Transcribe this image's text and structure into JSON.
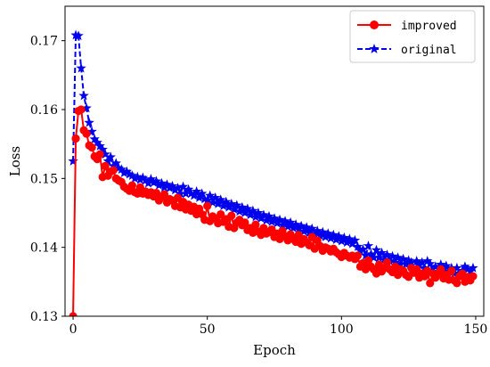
{
  "chart_data": {
    "type": "line",
    "title": "",
    "xlabel": "Epoch",
    "ylabel": "Loss",
    "xlim": [
      -3,
      153
    ],
    "ylim": [
      0.13,
      0.175
    ],
    "xticks": [
      0,
      50,
      100,
      150
    ],
    "yticks": [
      0.13,
      0.14,
      0.15,
      0.16,
      0.17
    ],
    "ytick_labels": [
      "0.13",
      "0.14",
      "0.15",
      "0.16",
      "0.17"
    ],
    "grid": false,
    "legend": "top-right",
    "x": [
      0,
      1,
      2,
      3,
      4,
      5,
      6,
      7,
      8,
      9,
      10,
      11,
      12,
      13,
      14,
      15,
      16,
      17,
      18,
      19,
      20,
      21,
      22,
      23,
      24,
      25,
      26,
      27,
      28,
      29,
      30,
      31,
      32,
      33,
      34,
      35,
      36,
      37,
      38,
      39,
      40,
      41,
      42,
      43,
      44,
      45,
      46,
      47,
      48,
      49,
      50,
      51,
      52,
      53,
      54,
      55,
      56,
      57,
      58,
      59,
      60,
      61,
      62,
      63,
      64,
      65,
      66,
      67,
      68,
      69,
      70,
      71,
      72,
      73,
      74,
      75,
      76,
      77,
      78,
      79,
      80,
      81,
      82,
      83,
      84,
      85,
      86,
      87,
      88,
      89,
      90,
      91,
      92,
      93,
      94,
      95,
      96,
      97,
      98,
      99,
      100,
      101,
      102,
      103,
      104,
      105,
      106,
      107,
      108,
      109,
      110,
      111,
      112,
      113,
      114,
      115,
      116,
      117,
      118,
      119,
      120,
      121,
      122,
      123,
      124,
      125,
      126,
      127,
      128,
      129,
      130,
      131,
      132,
      133,
      134,
      135,
      136,
      137,
      138,
      139,
      140,
      141,
      142,
      143,
      144,
      145,
      146,
      147,
      148,
      149
    ],
    "series": [
      {
        "name": "improved",
        "color": "#ff0000",
        "style": "solid",
        "marker": "circle",
        "values": [
          0.13,
          0.1558,
          0.1598,
          0.16,
          0.157,
          0.1565,
          0.1548,
          0.1545,
          0.1532,
          0.1528,
          0.1535,
          0.1502,
          0.1518,
          0.1504,
          0.151,
          0.1512,
          0.15,
          0.1497,
          0.1495,
          0.1488,
          0.1485,
          0.1482,
          0.149,
          0.148,
          0.1478,
          0.1487,
          0.1478,
          0.1481,
          0.1476,
          0.148,
          0.1474,
          0.1479,
          0.1468,
          0.1473,
          0.1477,
          0.1465,
          0.147,
          0.1468,
          0.146,
          0.1472,
          0.1458,
          0.1466,
          0.1455,
          0.1462,
          0.1453,
          0.1459,
          0.1448,
          0.1456,
          0.1448,
          0.144,
          0.146,
          0.1438,
          0.1445,
          0.1442,
          0.1435,
          0.1448,
          0.1437,
          0.1441,
          0.143,
          0.1446,
          0.1428,
          0.1436,
          0.144,
          0.1432,
          0.1436,
          0.1425,
          0.1428,
          0.1421,
          0.1433,
          0.1423,
          0.1418,
          0.1428,
          0.142,
          0.1422,
          0.1426,
          0.1415,
          0.142,
          0.1412,
          0.1424,
          0.1416,
          0.141,
          0.1419,
          0.1412,
          0.1408,
          0.1418,
          0.1405,
          0.1412,
          0.1407,
          0.1403,
          0.1415,
          0.1398,
          0.141,
          0.1402,
          0.1395,
          0.14,
          0.1398,
          0.1394,
          0.1398,
          0.1393,
          0.139,
          0.1386,
          0.1392,
          0.1388,
          0.1385,
          0.1388,
          0.1383,
          0.1388,
          0.1372,
          0.1377,
          0.1368,
          0.1381,
          0.1372,
          0.1368,
          0.1362,
          0.1375,
          0.1365,
          0.137,
          0.1378,
          0.1368,
          0.1364,
          0.1372,
          0.136,
          0.1368,
          0.1366,
          0.136,
          0.1357,
          0.137,
          0.1363,
          0.1368,
          0.1356,
          0.1362,
          0.1358,
          0.1366,
          0.1348,
          0.1362,
          0.1356,
          0.1362,
          0.1368,
          0.1355,
          0.136,
          0.1353,
          0.1366,
          0.1352,
          0.1348,
          0.1358,
          0.1362,
          0.135,
          0.1357,
          0.1352,
          0.1358
        ]
      },
      {
        "name": "original",
        "color": "#0000ee",
        "style": "dashed",
        "marker": "star",
        "values": [
          0.1525,
          0.1708,
          0.1707,
          0.166,
          0.162,
          0.1602,
          0.1581,
          0.1568,
          0.1557,
          0.1552,
          0.1547,
          0.1542,
          0.1535,
          0.1525,
          0.1531,
          0.1518,
          0.1522,
          0.1515,
          0.1513,
          0.1508,
          0.151,
          0.1506,
          0.1504,
          0.15,
          0.1502,
          0.1498,
          0.1501,
          0.1497,
          0.1493,
          0.1499,
          0.1494,
          0.1496,
          0.149,
          0.1493,
          0.1487,
          0.1491,
          0.1486,
          0.1489,
          0.1483,
          0.1486,
          0.1478,
          0.1488,
          0.1478,
          0.1484,
          0.1478,
          0.1475,
          0.1481,
          0.1472,
          0.1478,
          0.147,
          0.1468,
          0.1475,
          0.1465,
          0.1472,
          0.1463,
          0.1469,
          0.146,
          0.1466,
          0.1458,
          0.1463,
          0.1455,
          0.1461,
          0.1452,
          0.1458,
          0.145,
          0.1456,
          0.1447,
          0.1453,
          0.1444,
          0.145,
          0.1442,
          0.1447,
          0.1439,
          0.1445,
          0.1437,
          0.1442,
          0.1435,
          0.144,
          0.1432,
          0.1438,
          0.143,
          0.1436,
          0.1428,
          0.1433,
          0.1426,
          0.1431,
          0.1423,
          0.1429,
          0.1421,
          0.1427,
          0.1419,
          0.1424,
          0.1417,
          0.1422,
          0.1415,
          0.142,
          0.1413,
          0.1418,
          0.1411,
          0.1416,
          0.1409,
          0.1414,
          0.1407,
          0.1412,
          0.1405,
          0.141,
          0.1401,
          0.1395,
          0.1397,
          0.1388,
          0.1402,
          0.139,
          0.1385,
          0.1396,
          0.1385,
          0.1392,
          0.1382,
          0.1389,
          0.138,
          0.1387,
          0.1378,
          0.1385,
          0.1376,
          0.1383,
          0.1375,
          0.1381,
          0.1378,
          0.1368,
          0.138,
          0.1374,
          0.1378,
          0.137,
          0.138,
          0.1376,
          0.1365,
          0.1372,
          0.1362,
          0.1375,
          0.1368,
          0.1373,
          0.1365,
          0.137,
          0.1362,
          0.137,
          0.1358,
          0.1366,
          0.1372,
          0.1368,
          0.1365,
          0.137
        ]
      }
    ]
  }
}
